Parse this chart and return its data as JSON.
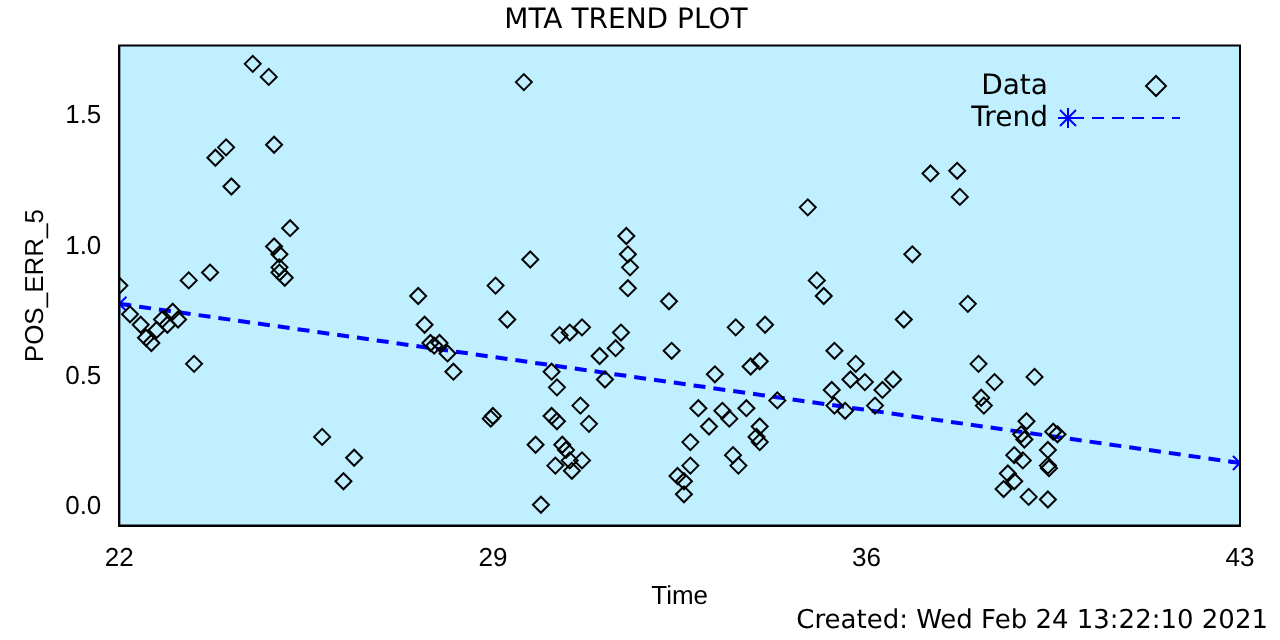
{
  "chart_data": {
    "type": "scatter",
    "title": "MTA TREND PLOT",
    "xlabel": "Time",
    "ylabel": "POS_ERR_5",
    "xlim": [
      22,
      43
    ],
    "xticks": [
      22,
      29,
      36,
      43
    ],
    "ylim": [
      -0.07,
      1.77
    ],
    "yticks": [
      {
        "value": 0,
        "label": "0.0"
      },
      {
        "value": 0.5,
        "label": "0.5"
      },
      {
        "value": 1,
        "label": "1.0"
      },
      {
        "value": 1.5,
        "label": "1.5"
      }
    ],
    "grid": false,
    "legend": "top right",
    "annotations": [
      "Created: Wed Feb 24 13:22:10 2021"
    ],
    "series": [
      {
        "name": "Data",
        "type": "scatter",
        "color": "#000000",
        "marker": "diamond",
        "x": [
          22.0,
          22.2,
          22.4,
          22.5,
          22.6,
          22.7,
          22.8,
          22.9,
          23.0,
          23.1,
          23.3,
          23.4,
          23.7,
          23.8,
          24.0,
          24.1,
          24.5,
          24.8,
          24.9,
          24.9,
          25.0,
          25.0,
          25.1,
          25.2,
          25.0,
          25.8,
          26.2,
          26.4,
          27.6,
          27.72,
          27.83,
          27.9,
          28.0,
          28.15,
          28.26,
          29.05,
          29.0,
          28.96,
          29.58,
          29.7,
          29.27,
          30.25,
          30.44,
          30.67,
          30.1,
          30.2,
          30.1,
          30.2,
          29.8,
          29.9,
          30.3,
          30.37,
          30.44,
          30.17,
          30.48,
          30.67,
          30.64,
          30.8,
          31.0,
          31.1,
          31.3,
          31.4,
          31.5,
          31.53,
          31.57,
          31.53,
          32.3,
          32.35,
          32.7,
          32.7,
          32.46,
          32.58,
          32.58,
          32.85,
          33.05,
          33.16,
          33.3,
          33.43,
          33.75,
          33.55,
          34.1,
          33.83,
          34.0,
          33.5,
          33.6,
          34.0,
          33.94,
          34.0,
          34.33,
          34.9,
          35.07,
          35.2,
          35.4,
          35.8,
          35.7,
          35.97,
          35.35,
          35.4,
          35.6,
          36.3,
          36.5,
          36.16,
          36.7,
          36.86,
          37.2,
          37.7,
          37.75,
          37.9,
          38.1,
          38.4,
          38.15,
          38.2,
          39.15,
          39.0,
          38.9,
          38.96,
          38.77,
          38.93,
          38.65,
          38.77,
          38.57,
          39.04,
          39.4,
          39.5,
          39.58,
          39.4,
          39.4,
          39.42
        ],
        "values": [
          0.85,
          0.74,
          0.7,
          0.65,
          0.63,
          0.68,
          0.72,
          0.7,
          0.75,
          0.72,
          0.87,
          0.55,
          0.9,
          1.34,
          1.38,
          1.23,
          1.7,
          1.65,
          1.39,
          1.0,
          0.97,
          0.92,
          0.88,
          1.07,
          0.9,
          0.27,
          0.1,
          0.19,
          0.81,
          0.7,
          0.63,
          0.62,
          0.63,
          0.59,
          0.52,
          0.85,
          0.35,
          0.34,
          1.63,
          0.95,
          0.72,
          0.66,
          0.67,
          0.69,
          0.52,
          0.46,
          0.35,
          0.33,
          0.24,
          0.01,
          0.24,
          0.22,
          0.18,
          0.16,
          0.14,
          0.18,
          0.39,
          0.32,
          0.58,
          0.49,
          0.61,
          0.67,
          1.04,
          0.97,
          0.92,
          0.84,
          0.79,
          0.6,
          0.25,
          0.16,
          0.12,
          0.1,
          0.05,
          0.38,
          0.31,
          0.51,
          0.37,
          0.34,
          0.38,
          0.69,
          0.7,
          0.54,
          0.56,
          0.2,
          0.16,
          0.31,
          0.27,
          0.25,
          0.41,
          1.15,
          0.87,
          0.81,
          0.6,
          0.55,
          0.49,
          0.48,
          0.45,
          0.39,
          0.37,
          0.45,
          0.49,
          0.39,
          0.72,
          0.97,
          1.28,
          1.29,
          1.19,
          0.78,
          0.55,
          0.48,
          0.42,
          0.39,
          0.5,
          0.33,
          0.28,
          0.26,
          0.2,
          0.18,
          0.13,
          0.1,
          0.07,
          0.04,
          0.03,
          0.29,
          0.28,
          0.22,
          0.16,
          0.15
        ]
      },
      {
        "name": "Trend",
        "type": "line",
        "color": "#0000ff",
        "marker": "cross",
        "line_style": "dashed",
        "x": [
          22,
          43
        ],
        "values": [
          0.78,
          0.17
        ]
      }
    ]
  }
}
